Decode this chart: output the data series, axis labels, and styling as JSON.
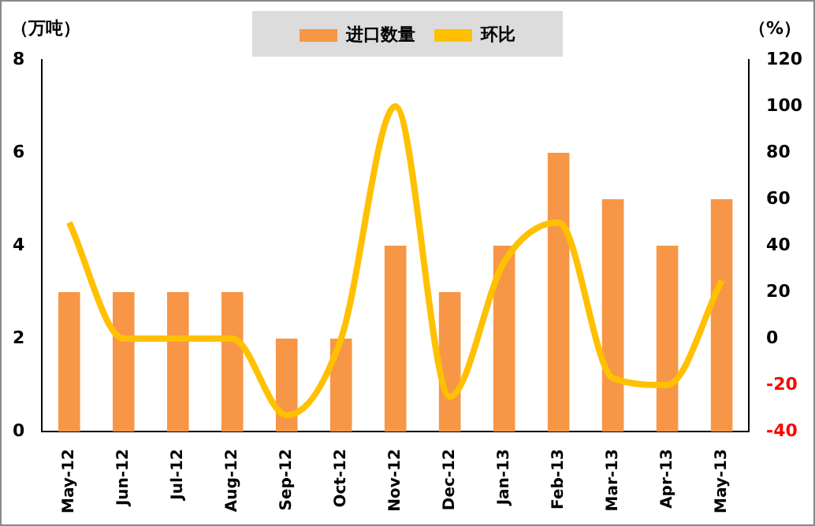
{
  "chart_data": {
    "type": "bar",
    "ylabel": "（万吨）",
    "y2label": "（%）",
    "categories": [
      "May-12",
      "Jun-12",
      "Jul-12",
      "Aug-12",
      "Sep-12",
      "Oct-12",
      "Nov-12",
      "Dec-12",
      "Jan-13",
      "Feb-13",
      "Mar-13",
      "Apr-13",
      "May-13"
    ],
    "series": [
      {
        "name": "进口数量",
        "color": "#f79646",
        "values": [
          3,
          3,
          3,
          3,
          2,
          2,
          4,
          3,
          4,
          6,
          5,
          4,
          5
        ]
      },
      {
        "name": "环比",
        "type": "line",
        "axis": "y2",
        "color": "#ffc000",
        "values": [
          50,
          0,
          0,
          0,
          -33,
          0,
          100,
          -25,
          33,
          50,
          -17,
          -20,
          25
        ]
      }
    ],
    "ylim": [
      0,
      8
    ],
    "yticks": [
      0,
      2,
      4,
      6,
      8
    ],
    "y2lim": [
      -40,
      120
    ],
    "y2ticks": [
      -40,
      -20,
      0,
      20,
      40,
      60,
      80,
      100,
      120
    ],
    "grid": false,
    "legend": "top",
    "marker": "none",
    "line_style": "solid"
  }
}
